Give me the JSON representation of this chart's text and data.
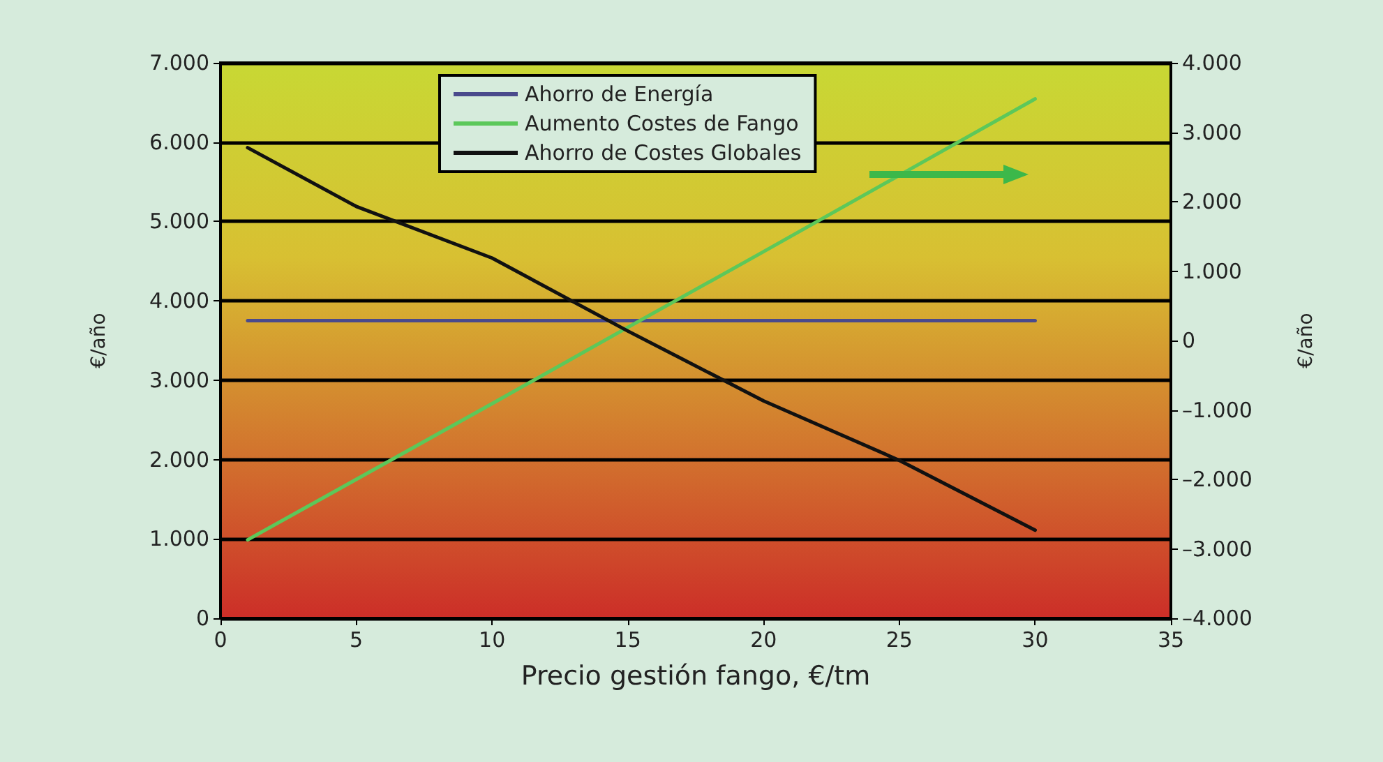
{
  "chart_data": {
    "type": "line",
    "xlabel": "Precio gestión fango, €/tm",
    "ylabel": "€/año",
    "y2label": "€/año",
    "series": [
      {
        "name": "Ahorro de Energía",
        "color": "#4a4a8c",
        "x": [
          1,
          30
        ],
        "values": [
          3750,
          3750
        ]
      },
      {
        "name": "Aumento Costes de Fango",
        "color": "#5cc85a",
        "axis": "y2",
        "x": [
          1,
          5,
          10,
          15,
          20,
          25,
          30
        ],
        "values": [
          -2870,
          -2000,
          -910,
          190,
          1280,
          2380,
          3480
        ]
      },
      {
        "name": "Ahorro de Costes Globales",
        "color": "#111111",
        "x": [
          1,
          5,
          10,
          15,
          20,
          25,
          30
        ],
        "values": [
          5930,
          5190,
          4540,
          3620,
          2740,
          1990,
          1110
        ]
      }
    ],
    "xlim": [
      0,
      35
    ],
    "xticks": [
      0,
      5,
      10,
      15,
      20,
      25,
      30,
      35
    ],
    "ylim": [
      0,
      7000
    ],
    "yticks": [
      0,
      {
        "value": 1000,
        "label": "1.000"
      },
      {
        "value": 2000,
        "label": "2.000"
      },
      {
        "value": 3000,
        "label": "3.000"
      },
      {
        "value": 4000,
        "label": "4.000"
      },
      {
        "value": 5000,
        "label": "5.000"
      },
      {
        "value": 6000,
        "label": "6.000"
      },
      {
        "value": 7000,
        "label": "7.000"
      }
    ],
    "y2lim": [
      -4000,
      4000
    ],
    "y2ticks": [
      {
        "value": -4000,
        "label": "–4.000"
      },
      {
        "value": -3000,
        "label": "–3.000"
      },
      {
        "value": -2000,
        "label": "–2.000"
      },
      {
        "value": -1000,
        "label": "–1.000"
      },
      0,
      {
        "value": 1000,
        "label": "1.000"
      },
      {
        "value": 2000,
        "label": "2.000"
      },
      {
        "value": 3000,
        "label": "3.000"
      },
      {
        "value": 4000,
        "label": "4.000"
      }
    ],
    "grid": "y",
    "legend": "top",
    "marker": "none",
    "line_style": "solid"
  }
}
